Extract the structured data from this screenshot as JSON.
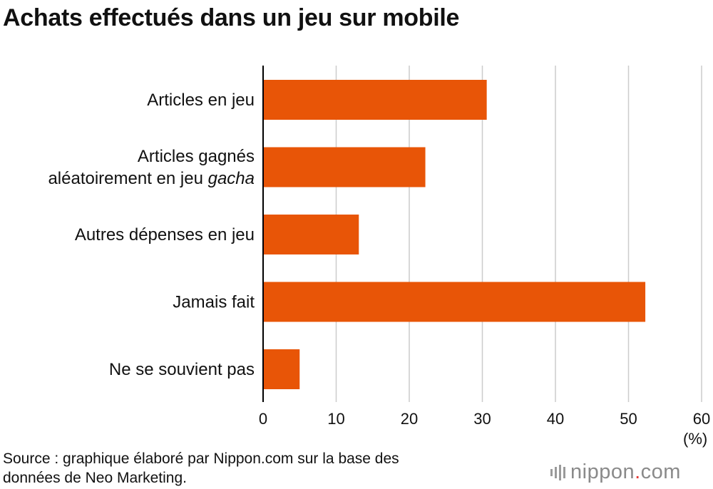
{
  "title": "Achats effectués dans un jeu sur mobile",
  "source_lines": [
    "Source : graphique élaboré par Nippon.com sur la base des",
    "données de Neo Marketing."
  ],
  "logo": {
    "main": "nippon",
    "dot": ".",
    "tld": "com",
    "icon": "sound-bars-icon"
  },
  "colors": {
    "bar": "#E85507",
    "grid": "#cccccc",
    "axis": "#000000",
    "logo_dot": "#e53935"
  },
  "chart_data": {
    "type": "bar",
    "orientation": "horizontal",
    "title": "Achats effectués dans un jeu sur mobile",
    "categories": [
      {
        "lines": [
          [
            {
              "t": "Articles en jeu",
              "i": false
            }
          ]
        ]
      },
      {
        "lines": [
          [
            {
              "t": "Articles gagnés",
              "i": false
            }
          ],
          [
            {
              "t": "aléatoirement en jeu ",
              "i": false
            },
            {
              "t": "gacha",
              "i": true
            }
          ]
        ]
      },
      {
        "lines": [
          [
            {
              "t": "Autres dépenses en jeu",
              "i": false
            }
          ]
        ]
      },
      {
        "lines": [
          [
            {
              "t": "Jamais fait",
              "i": false
            }
          ]
        ]
      },
      {
        "lines": [
          [
            {
              "t": "Ne se souvient pas",
              "i": false
            }
          ]
        ]
      }
    ],
    "values": [
      30.6,
      22.2,
      13.1,
      52.3,
      5.0
    ],
    "xlim": [
      0,
      60
    ],
    "xticks": [
      0,
      10,
      20,
      30,
      40,
      50,
      60
    ],
    "xlabel": "(%)",
    "grid": true
  }
}
